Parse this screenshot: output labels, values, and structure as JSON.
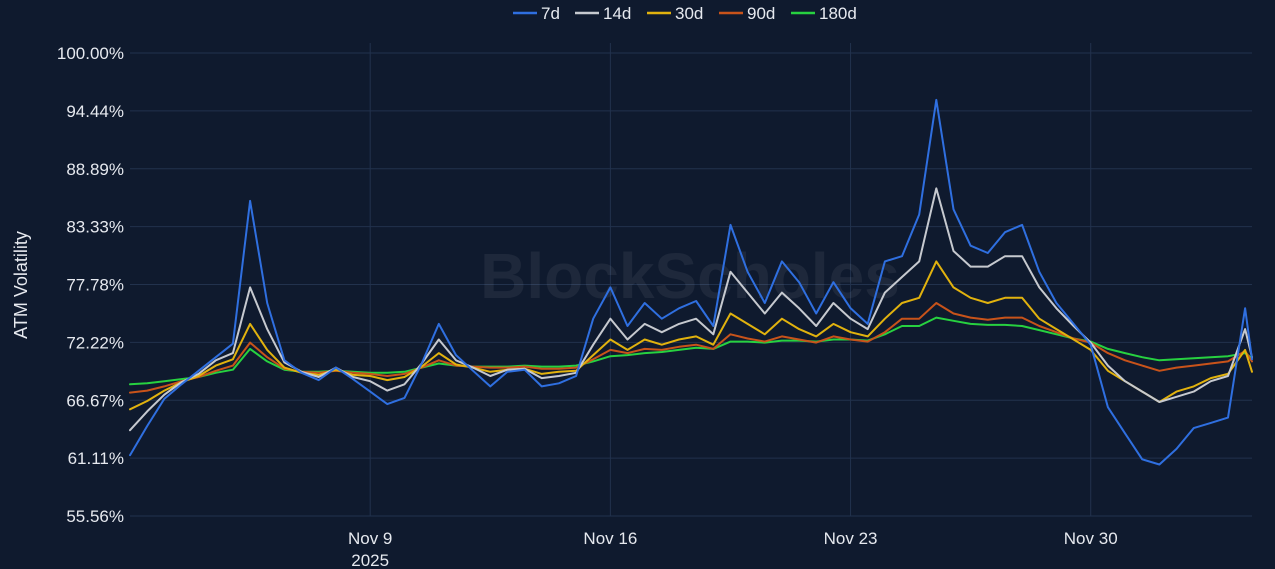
{
  "watermark": "BlockScholes",
  "colors": {
    "background": "#0f1a2e",
    "grid": "#22324d",
    "text": "#e6e9ef"
  },
  "chart_data": {
    "type": "line",
    "title": "",
    "xlabel": "",
    "ylabel": "ATM Volatility",
    "x_unit": "days since Nov 1 2025",
    "xlim": [
      1.0,
      33.7
    ],
    "ylim": [
      55.56,
      100.0
    ],
    "grid": true,
    "legend_position": "top-center",
    "y_ticks": [
      {
        "value": 55.56,
        "label": "55.56%"
      },
      {
        "value": 61.11,
        "label": "61.11%"
      },
      {
        "value": 66.67,
        "label": "66.67%"
      },
      {
        "value": 72.22,
        "label": "72.22%"
      },
      {
        "value": 77.78,
        "label": "77.78%"
      },
      {
        "value": 83.33,
        "label": "83.33%"
      },
      {
        "value": 88.89,
        "label": "88.89%"
      },
      {
        "value": 94.44,
        "label": "94.44%"
      },
      {
        "value": 100.0,
        "label": "100.00%"
      }
    ],
    "x_ticks": [
      {
        "value": 8,
        "label": "Nov 9",
        "sublabel": "2025"
      },
      {
        "value": 15,
        "label": "Nov 16",
        "sublabel": ""
      },
      {
        "value": 22,
        "label": "Nov 23",
        "sublabel": ""
      },
      {
        "value": 29,
        "label": "Nov 30",
        "sublabel": ""
      }
    ],
    "x": [
      1.0,
      1.5,
      2.0,
      2.5,
      3.0,
      3.5,
      4.0,
      4.5,
      5.0,
      5.5,
      6.0,
      6.5,
      7.0,
      7.5,
      8.0,
      8.5,
      9.0,
      9.5,
      10.0,
      10.5,
      11.0,
      11.5,
      12.0,
      12.5,
      13.0,
      13.5,
      14.0,
      14.5,
      15.0,
      15.5,
      16.0,
      16.5,
      17.0,
      17.5,
      18.0,
      18.5,
      19.0,
      19.5,
      20.0,
      20.5,
      21.0,
      21.5,
      22.0,
      22.5,
      23.0,
      23.5,
      24.0,
      24.5,
      25.0,
      25.5,
      26.0,
      26.5,
      27.0,
      27.5,
      28.0,
      28.5,
      29.0,
      29.5,
      30.0,
      30.5,
      31.0,
      31.5,
      32.0,
      32.5,
      33.0,
      33.5,
      33.7
    ],
    "series": [
      {
        "name": "7d",
        "color": "#2f6fe0",
        "values": [
          61.4,
          64.2,
          66.8,
          68.2,
          69.5,
          70.8,
          72.1,
          85.8,
          76.0,
          70.5,
          69.3,
          68.6,
          69.8,
          68.7,
          67.5,
          66.3,
          66.9,
          70.2,
          74.0,
          71.0,
          69.5,
          68.0,
          69.4,
          69.6,
          68.0,
          68.3,
          69.0,
          74.5,
          77.5,
          73.8,
          76.0,
          74.5,
          75.5,
          76.2,
          73.8,
          83.5,
          79.0,
          76.0,
          80.0,
          78.0,
          75.0,
          78.0,
          75.5,
          74.0,
          80.0,
          80.5,
          84.5,
          95.5,
          85.0,
          81.5,
          80.8,
          82.8,
          83.5,
          79.0,
          76.0,
          74.0,
          72.0,
          66.0,
          63.5,
          61.0,
          60.5,
          62.0,
          64.0,
          64.5,
          65.0,
          75.5,
          70.6
        ]
      },
      {
        "name": "14d",
        "color": "#c6c9cf",
        "values": [
          63.8,
          65.6,
          67.2,
          68.4,
          69.2,
          70.5,
          71.2,
          77.5,
          73.5,
          70.3,
          69.4,
          68.9,
          69.8,
          68.9,
          68.5,
          67.6,
          68.2,
          70.2,
          72.5,
          70.5,
          69.8,
          69.0,
          69.6,
          69.7,
          68.8,
          69.0,
          69.3,
          72.0,
          74.5,
          72.5,
          74.0,
          73.2,
          74.0,
          74.5,
          73.0,
          79.0,
          77.0,
          75.0,
          77.0,
          75.5,
          73.8,
          76.0,
          74.5,
          73.5,
          77.0,
          78.5,
          80.0,
          87.0,
          81.0,
          79.5,
          79.5,
          80.5,
          80.5,
          77.5,
          75.5,
          73.8,
          72.2,
          70.0,
          68.5,
          67.5,
          66.5,
          67.0,
          67.5,
          68.5,
          69.0,
          73.5,
          70.8
        ]
      },
      {
        "name": "30d",
        "color": "#e1b20e",
        "values": [
          65.8,
          66.6,
          67.6,
          68.4,
          69.0,
          70.0,
          70.6,
          74.0,
          71.5,
          69.8,
          69.3,
          69.1,
          69.6,
          69.1,
          69.0,
          68.6,
          68.9,
          69.9,
          71.2,
          70.1,
          69.8,
          69.4,
          69.6,
          69.7,
          69.2,
          69.4,
          69.5,
          71.0,
          72.5,
          71.5,
          72.5,
          72.0,
          72.5,
          72.8,
          72.0,
          75.0,
          74.0,
          73.0,
          74.5,
          73.5,
          72.8,
          74.0,
          73.2,
          72.8,
          74.5,
          76.0,
          76.5,
          80.0,
          77.5,
          76.5,
          76.0,
          76.5,
          76.5,
          74.5,
          73.5,
          72.5,
          71.5,
          69.5,
          68.5,
          67.5,
          66.5,
          67.5,
          68.0,
          68.8,
          69.2,
          71.5,
          69.4
        ]
      },
      {
        "name": "90d",
        "color": "#c8531a",
        "values": [
          67.4,
          67.6,
          68.0,
          68.5,
          68.9,
          69.5,
          70.0,
          72.2,
          70.8,
          69.7,
          69.4,
          69.3,
          69.5,
          69.3,
          69.2,
          69.0,
          69.2,
          69.8,
          70.5,
          70.0,
          69.9,
          69.8,
          69.8,
          69.9,
          69.7,
          69.7,
          69.8,
          70.6,
          71.5,
          71.2,
          71.6,
          71.5,
          71.8,
          72.0,
          71.6,
          73.0,
          72.6,
          72.3,
          72.8,
          72.5,
          72.2,
          72.8,
          72.5,
          72.3,
          73.2,
          74.5,
          74.5,
          76.0,
          75.0,
          74.6,
          74.4,
          74.6,
          74.6,
          73.8,
          73.2,
          72.6,
          72.2,
          71.2,
          70.5,
          70.0,
          69.5,
          69.8,
          70.0,
          70.2,
          70.4,
          71.4,
          70.4
        ]
      },
      {
        "name": "180d",
        "color": "#27d140",
        "values": [
          68.2,
          68.3,
          68.5,
          68.7,
          68.9,
          69.3,
          69.6,
          71.6,
          70.4,
          69.6,
          69.4,
          69.4,
          69.5,
          69.4,
          69.3,
          69.3,
          69.4,
          69.8,
          70.2,
          70.0,
          69.9,
          69.9,
          69.9,
          70.0,
          69.9,
          69.9,
          70.0,
          70.4,
          70.9,
          71.0,
          71.2,
          71.3,
          71.5,
          71.7,
          71.6,
          72.3,
          72.3,
          72.2,
          72.4,
          72.4,
          72.3,
          72.5,
          72.5,
          72.4,
          73.0,
          73.8,
          73.8,
          74.6,
          74.3,
          74.0,
          73.9,
          73.9,
          73.8,
          73.4,
          73.0,
          72.6,
          72.3,
          71.6,
          71.2,
          70.8,
          70.5,
          70.6,
          70.7,
          70.8,
          70.9,
          71.2,
          70.7
        ]
      }
    ]
  }
}
